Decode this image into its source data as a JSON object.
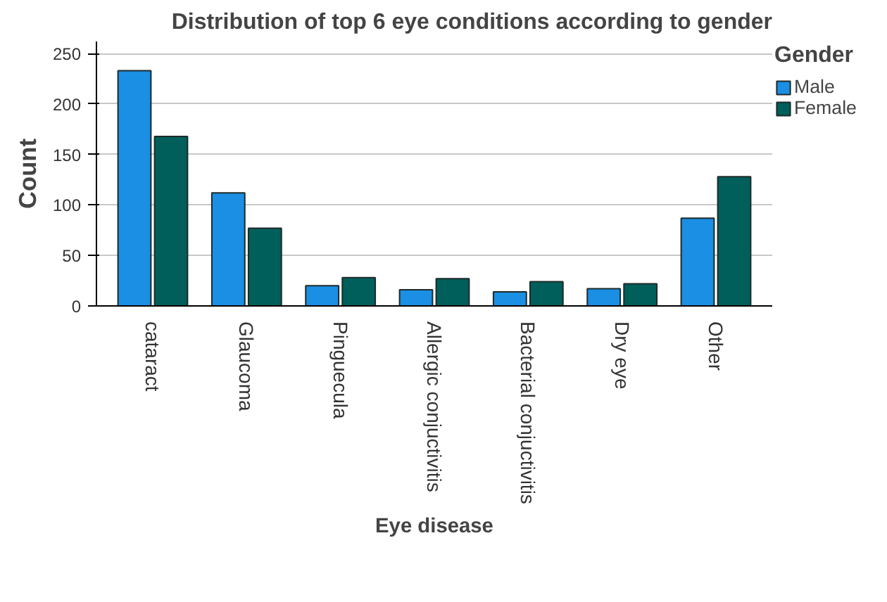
{
  "chart_data": {
    "type": "bar",
    "title": "Distribution of top 6 eye conditions according to gender",
    "xlabel": "Eye disease",
    "ylabel": "Count",
    "legend_title": "Gender",
    "categories": [
      "cataract",
      "Glaucoma",
      "Pinguecula",
      "Allergic conjuctivitis",
      "Bacterial conjuctivitis",
      "Dry eye",
      "Other"
    ],
    "series": [
      {
        "name": "Male",
        "color": "#1a8fe3",
        "values": [
          233,
          112,
          20,
          16,
          14,
          17,
          87
        ]
      },
      {
        "name": "Female",
        "color": "#005f5a",
        "values": [
          168,
          77,
          28,
          27,
          24,
          22,
          128
        ]
      }
    ],
    "ylim": [
      0,
      262
    ],
    "yticks": [
      0,
      50,
      100,
      150,
      200,
      250
    ],
    "grid": "y",
    "legend": "top right"
  }
}
